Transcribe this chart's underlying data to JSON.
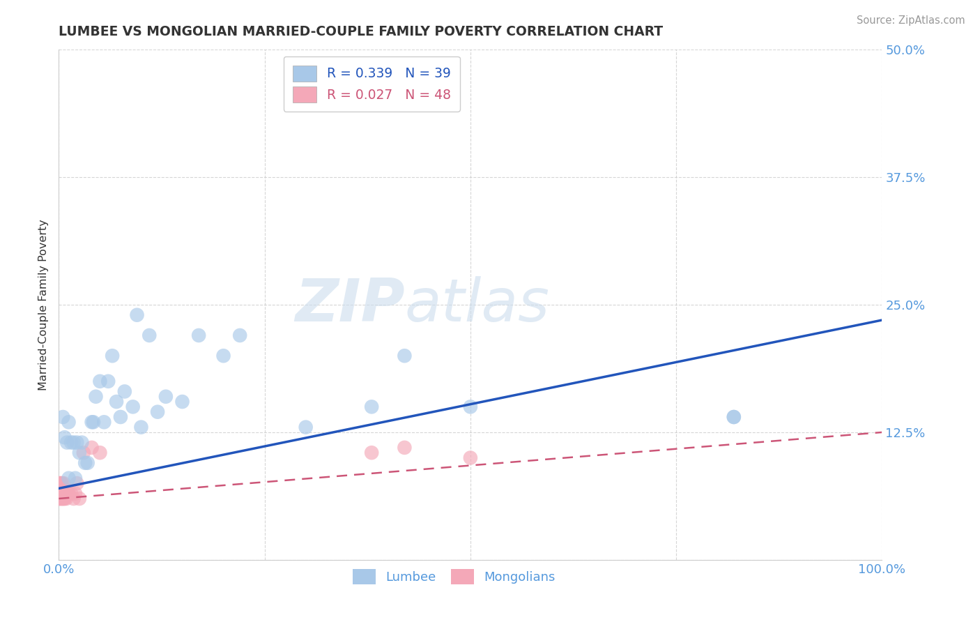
{
  "title": "LUMBEE VS MONGOLIAN MARRIED-COUPLE FAMILY POVERTY CORRELATION CHART",
  "source": "Source: ZipAtlas.com",
  "ylabel": "Married-Couple Family Poverty",
  "watermark_zip": "ZIP",
  "watermark_atlas": "atlas",
  "xlim": [
    0,
    1.0
  ],
  "ylim": [
    0,
    0.5
  ],
  "xticks": [
    0.0,
    0.25,
    0.5,
    0.75,
    1.0
  ],
  "xticklabels": [
    "0.0%",
    "",
    "",
    "",
    "100.0%"
  ],
  "yticks": [
    0.0,
    0.125,
    0.25,
    0.375,
    0.5
  ],
  "yticklabels": [
    "",
    "12.5%",
    "25.0%",
    "37.5%",
    "50.0%"
  ],
  "lumbee_R": 0.339,
  "lumbee_N": 39,
  "mongolian_R": 0.027,
  "mongolian_N": 48,
  "lumbee_color": "#a8c8e8",
  "mongolian_color": "#f4a8b8",
  "lumbee_line_color": "#2255bb",
  "mongolian_line_color": "#cc5577",
  "legend_label_1": "Lumbee",
  "legend_label_2": "Mongolians",
  "lumbee_x": [
    0.005,
    0.007,
    0.01,
    0.012,
    0.012,
    0.015,
    0.018,
    0.02,
    0.022,
    0.025,
    0.028,
    0.032,
    0.035,
    0.04,
    0.042,
    0.045,
    0.05,
    0.055,
    0.06,
    0.065,
    0.07,
    0.075,
    0.08,
    0.09,
    0.095,
    0.1,
    0.11,
    0.12,
    0.13,
    0.15,
    0.17,
    0.2,
    0.22,
    0.3,
    0.38,
    0.42,
    0.5,
    0.82,
    0.82
  ],
  "lumbee_y": [
    0.14,
    0.12,
    0.115,
    0.135,
    0.08,
    0.115,
    0.115,
    0.08,
    0.115,
    0.105,
    0.115,
    0.095,
    0.095,
    0.135,
    0.135,
    0.16,
    0.175,
    0.135,
    0.175,
    0.2,
    0.155,
    0.14,
    0.165,
    0.15,
    0.24,
    0.13,
    0.22,
    0.145,
    0.16,
    0.155,
    0.22,
    0.2,
    0.22,
    0.13,
    0.15,
    0.2,
    0.15,
    0.14,
    0.14
  ],
  "mongolian_x": [
    0.001,
    0.001,
    0.001,
    0.001,
    0.001,
    0.002,
    0.002,
    0.002,
    0.002,
    0.002,
    0.002,
    0.002,
    0.003,
    0.003,
    0.003,
    0.003,
    0.003,
    0.003,
    0.003,
    0.004,
    0.004,
    0.004,
    0.004,
    0.004,
    0.005,
    0.005,
    0.005,
    0.006,
    0.006,
    0.006,
    0.007,
    0.007,
    0.008,
    0.009,
    0.01,
    0.011,
    0.012,
    0.015,
    0.018,
    0.02,
    0.022,
    0.025,
    0.03,
    0.04,
    0.05,
    0.38,
    0.42,
    0.5
  ],
  "mongolian_y": [
    0.06,
    0.065,
    0.065,
    0.07,
    0.075,
    0.06,
    0.062,
    0.063,
    0.065,
    0.067,
    0.07,
    0.075,
    0.06,
    0.062,
    0.063,
    0.065,
    0.067,
    0.07,
    0.075,
    0.06,
    0.062,
    0.065,
    0.07,
    0.075,
    0.06,
    0.065,
    0.07,
    0.06,
    0.065,
    0.075,
    0.06,
    0.065,
    0.065,
    0.06,
    0.065,
    0.065,
    0.065,
    0.065,
    0.06,
    0.065,
    0.075,
    0.06,
    0.105,
    0.11,
    0.105,
    0.105,
    0.11,
    0.1
  ],
  "lumbee_trendline_x": [
    0.0,
    1.0
  ],
  "lumbee_trendline_y": [
    0.07,
    0.235
  ],
  "mongolian_trendline_x": [
    0.0,
    1.0
  ],
  "mongolian_trendline_y": [
    0.06,
    0.125
  ],
  "background_color": "#ffffff",
  "grid_color": "#cccccc",
  "title_color": "#333333",
  "axis_color": "#5599dd",
  "tick_color": "#5599dd"
}
